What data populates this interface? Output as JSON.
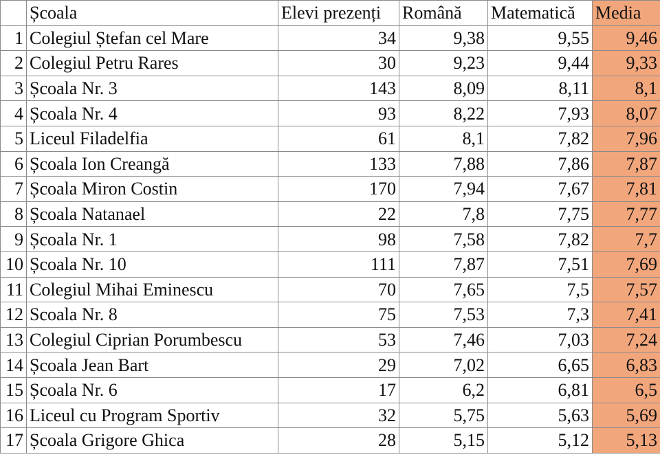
{
  "table": {
    "headers": [
      "",
      "Școala",
      "Elevi prezenți",
      "Română",
      "Matematică",
      "Media"
    ],
    "rows": [
      [
        "1",
        "Colegiul Ștefan cel Mare",
        "34",
        "9,38",
        "9,55",
        "9,46"
      ],
      [
        "2",
        "Colegiul Petru Rares",
        "30",
        "9,23",
        "9,44",
        "9,33"
      ],
      [
        "3",
        "Școala Nr. 3",
        "143",
        "8,09",
        "8,11",
        "8,1"
      ],
      [
        "4",
        "Școala Nr. 4",
        "93",
        "8,22",
        "7,93",
        "8,07"
      ],
      [
        "5",
        "Liceul Filadelfia",
        "61",
        "8,1",
        "7,82",
        "7,96"
      ],
      [
        "6",
        "Școala Ion Creangă",
        "133",
        "7,88",
        "7,86",
        "7,87"
      ],
      [
        "7",
        "Școala Miron Costin",
        "170",
        "7,94",
        "7,67",
        "7,81"
      ],
      [
        "8",
        "Școala Natanael",
        "22",
        "7,8",
        "7,75",
        "7,77"
      ],
      [
        "9",
        "Școala Nr. 1",
        "98",
        "7,58",
        "7,82",
        "7,7"
      ],
      [
        "10",
        "Școala Nr. 10",
        "111",
        "7,87",
        "7,51",
        "7,69"
      ],
      [
        "11",
        "Colegiul Mihai Eminescu",
        "70",
        "7,65",
        "7,5",
        "7,57"
      ],
      [
        "12",
        "Scoala Nr. 8",
        "75",
        "7,53",
        "7,3",
        "7,41"
      ],
      [
        "13",
        "Colegiul Ciprian Porumbescu",
        "53",
        "7,46",
        "7,03",
        "7,24"
      ],
      [
        "14",
        "Școala Jean Bart",
        "29",
        "7,02",
        "6,65",
        "6,83"
      ],
      [
        "15",
        "Școala Nr. 6",
        "17",
        "6,2",
        "6,81",
        "6,5"
      ],
      [
        "16",
        "Liceul cu Program Sportiv",
        "32",
        "5,75",
        "5,63",
        "5,69"
      ],
      [
        "17",
        "Școala Grigore Ghica",
        "28",
        "5,15",
        "5,12",
        "5,13"
      ]
    ]
  },
  "colors": {
    "media_highlight": "#f2a67c",
    "grid_line": "#8a8a8a"
  }
}
